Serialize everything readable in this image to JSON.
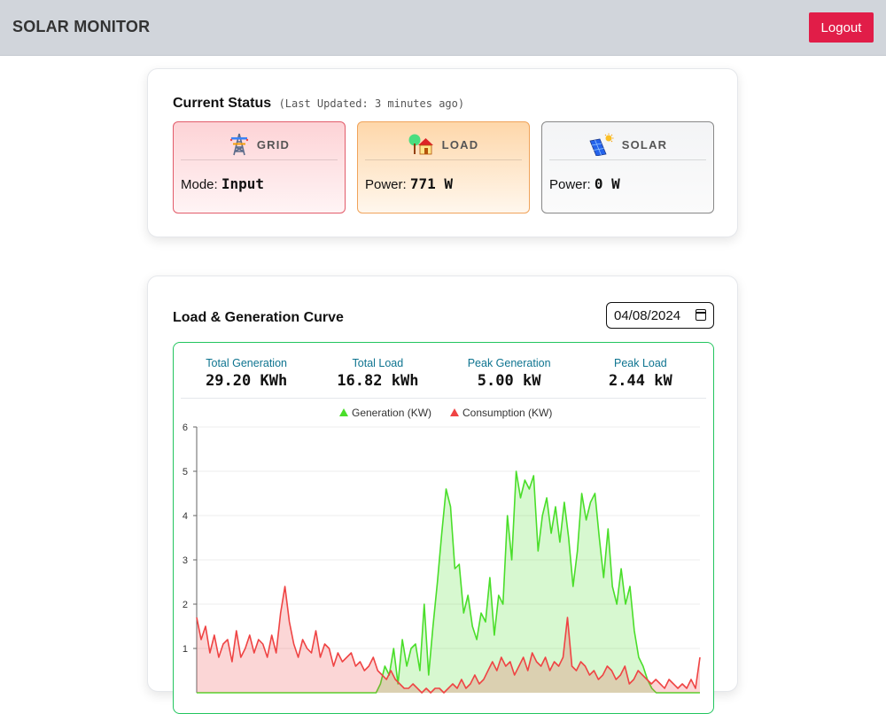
{
  "header": {
    "title": "SOLAR MONITOR",
    "logout_label": "Logout"
  },
  "status": {
    "title": "Current Status",
    "last_updated": "(Last Updated: 3 minutes ago)",
    "grid": {
      "label": "GRID",
      "field": "Mode:",
      "value": "Input",
      "icon": "transmission-tower-icon"
    },
    "load": {
      "label": "LOAD",
      "field": "Power:",
      "value": "771 W",
      "icon": "house-with-tree-icon"
    },
    "solar": {
      "label": "SOLAR",
      "field": "Power:",
      "value": "0 W",
      "icon": "solar-panel-icon"
    }
  },
  "curve": {
    "title": "Load & Generation Curve",
    "date": "04/08/2024",
    "stats": [
      {
        "label": "Total Generation",
        "value": "29.20 KWh"
      },
      {
        "label": "Total Load",
        "value": "16.82 kWh"
      },
      {
        "label": "Peak Generation",
        "value": "5.00 kW"
      },
      {
        "label": "Peak Load",
        "value": "2.44 kW"
      }
    ]
  },
  "colors": {
    "generation": "#4ade2a",
    "consumption": "#ef4444",
    "accent": "#e11d48"
  },
  "chart_data": {
    "type": "area",
    "legend_position": "top-center",
    "grid": true,
    "ylim": [
      0,
      6
    ],
    "yticks": [
      "6",
      "5",
      "4",
      "3",
      "2",
      "1"
    ],
    "series": [
      {
        "name": "Generation (KW)",
        "color": "#4ade2a",
        "values": [
          0,
          0,
          0,
          0,
          0,
          0,
          0,
          0,
          0,
          0,
          0,
          0,
          0,
          0,
          0,
          0,
          0,
          0,
          0,
          0,
          0,
          0,
          0,
          0,
          0,
          0,
          0,
          0,
          0,
          0,
          0,
          0,
          0,
          0,
          0,
          0,
          0,
          0,
          0,
          0,
          0,
          0,
          0.2,
          0.6,
          0.4,
          1.0,
          0.2,
          1.2,
          0.6,
          1.0,
          1.1,
          0.5,
          2.0,
          0.4,
          1.5,
          2.5,
          3.6,
          4.6,
          4.2,
          2.8,
          2.9,
          1.8,
          2.2,
          1.5,
          1.2,
          1.8,
          1.6,
          2.6,
          1.3,
          2.2,
          2.0,
          4.0,
          3.0,
          5.0,
          4.4,
          4.8,
          4.6,
          4.9,
          3.2,
          4.0,
          4.4,
          3.6,
          4.2,
          3.4,
          4.3,
          3.5,
          2.4,
          3.2,
          4.5,
          3.9,
          4.3,
          4.5,
          3.5,
          2.6,
          3.7,
          2.4,
          2.0,
          2.8,
          2.0,
          2.4,
          1.4,
          0.8,
          0.6,
          0.3,
          0.1,
          0,
          0,
          0,
          0,
          0,
          0,
          0,
          0,
          0,
          0,
          0
        ]
      },
      {
        "name": "Consumption (KW)",
        "color": "#ef4444",
        "values": [
          1.7,
          1.2,
          1.5,
          0.9,
          1.3,
          0.8,
          1.1,
          1.2,
          0.7,
          1.4,
          0.8,
          1.0,
          1.3,
          0.9,
          1.2,
          1.1,
          0.8,
          1.3,
          0.9,
          1.8,
          2.4,
          1.6,
          1.1,
          0.8,
          1.2,
          1.0,
          0.9,
          1.4,
          0.8,
          1.1,
          1.0,
          0.6,
          0.9,
          0.7,
          0.8,
          0.9,
          0.6,
          0.7,
          0.5,
          0.6,
          0.8,
          0.5,
          0.4,
          0.3,
          0.5,
          0.3,
          0.2,
          0.1,
          0.1,
          0.2,
          0.1,
          0,
          0.1,
          0,
          0.1,
          0.1,
          0,
          0.1,
          0.2,
          0.1,
          0.3,
          0.1,
          0.2,
          0.4,
          0.2,
          0.3,
          0.5,
          0.7,
          0.5,
          0.8,
          0.6,
          0.7,
          0.4,
          0.6,
          0.8,
          0.5,
          0.9,
          0.7,
          0.6,
          0.8,
          0.5,
          0.7,
          0.6,
          0.8,
          1.7,
          0.6,
          0.5,
          0.7,
          0.6,
          0.4,
          0.5,
          0.3,
          0.4,
          0.6,
          0.5,
          0.3,
          0.4,
          0.6,
          0.2,
          0.3,
          0.5,
          0.4,
          0.3,
          0.2,
          0.3,
          0.2,
          0.1,
          0.3,
          0.2,
          0.1,
          0.2,
          0.1,
          0.3,
          0.1,
          0.8
        ]
      }
    ]
  }
}
